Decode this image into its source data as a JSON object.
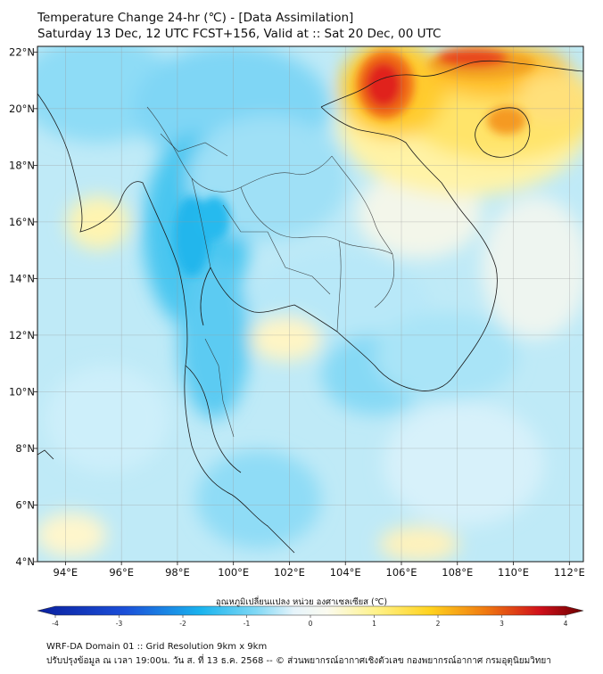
{
  "title": {
    "line1": "Temperature Change 24-hr (℃) - [Data Assimilation]",
    "line2": "Saturday 13 Dec, 12 UTC FCST+156, Valid at :: Sat 20 Dec, 00 UTC"
  },
  "axes": {
    "lat_labels": [
      "4°N",
      "6°N",
      "8°N",
      "10°N",
      "12°N",
      "14°N",
      "16°N",
      "18°N",
      "20°N",
      "22°N"
    ],
    "lat_values": [
      4,
      6,
      8,
      10,
      12,
      14,
      16,
      18,
      20,
      22
    ],
    "lon_labels": [
      "94°E",
      "96°E",
      "98°E",
      "100°E",
      "102°E",
      "104°E",
      "106°E",
      "108°E",
      "110°E",
      "112°E"
    ],
    "lon_values": [
      94,
      96,
      98,
      100,
      102,
      104,
      106,
      108,
      110,
      112
    ],
    "lon_range": [
      93,
      112.5
    ],
    "lat_range": [
      4,
      22.2
    ]
  },
  "colorbar": {
    "label": "อุณหภูมิเปลี่ยนแปลง หน่วย องศาเซลเซียส (℃)",
    "ticks": [
      "-4",
      "-3",
      "-2",
      "-1",
      "0",
      "1",
      "2",
      "3",
      "4"
    ],
    "tick_values": [
      -4,
      -3,
      -2,
      -1,
      0,
      1,
      2,
      3,
      4
    ],
    "range": [
      -4,
      4
    ]
  },
  "footer": {
    "line1": "WRF-DA Domain 01 :: Grid Resolution 9km x 9km",
    "line2": "ปรับปรุงข้อมูล ณ เวลา 19:00น. วัน ส. ที่ 13 ธ.ค. 2568 -- © ส่วนพยากรณ์อากาศเชิงตัวเลข กองพยากรณ์อากาศ กรมอุตุนิยมวิทยา"
  },
  "colors": {
    "cold_deep": "#0a1f9e",
    "cold": "#1ec8f0",
    "neutral": "#f4f8fb",
    "warm": "#ffe44d",
    "hot": "#e0141a",
    "hot_deep": "#7a0000"
  },
  "field_features": [
    {
      "region": "northern-vietnam-hotspot",
      "lon": 105.2,
      "lat": 20.8,
      "anomaly": 3.2
    },
    {
      "region": "gulf-of-tonkin-warm",
      "lon": 108.5,
      "lat": 21.6,
      "anomaly": 2.4
    },
    {
      "region": "hainan-warm",
      "lon": 109.8,
      "lat": 19.6,
      "anomaly": 2.0
    },
    {
      "region": "myanmar-cold-band",
      "lon": 98.3,
      "lat": 15.6,
      "anomaly": -1.6
    },
    {
      "region": "peninsula-cold",
      "lon": 99.2,
      "lat": 10.5,
      "anomaly": -1.2
    },
    {
      "region": "cambodia-cold",
      "lon": 104.8,
      "lat": 11.8,
      "anomaly": -0.9
    }
  ]
}
